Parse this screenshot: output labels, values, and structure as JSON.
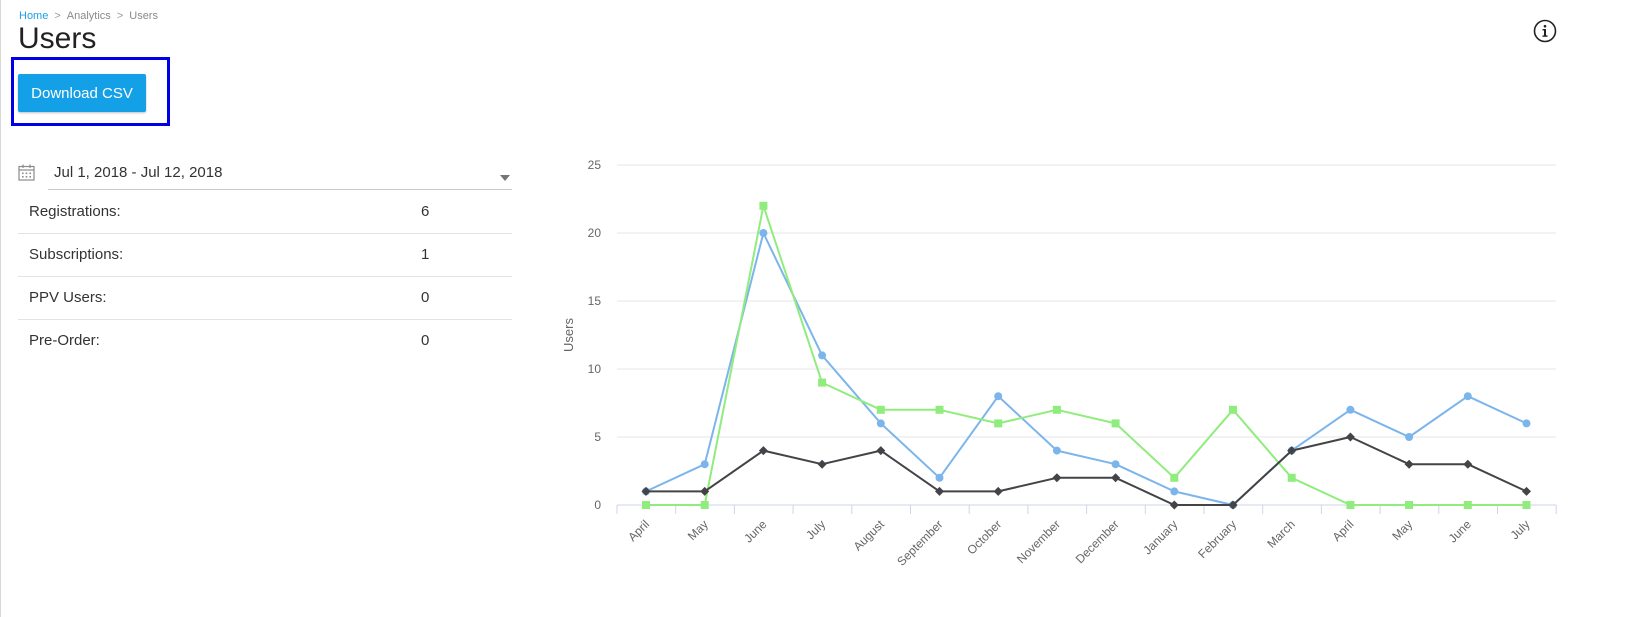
{
  "breadcrumb": {
    "home": "Home",
    "analytics": "Analytics",
    "current": "Users",
    "separator": ">"
  },
  "page": {
    "title": "Users"
  },
  "actions": {
    "download_label": "Download CSV"
  },
  "filter": {
    "date_range": "Jul 1, 2018 - Jul 12, 2018"
  },
  "stats": [
    {
      "label": "Registrations:",
      "value": "6"
    },
    {
      "label": "Subscriptions:",
      "value": "1"
    },
    {
      "label": "PPV Users:",
      "value": "0"
    },
    {
      "label": "Pre-Order:",
      "value": "0"
    }
  ],
  "icons": {
    "calendar": "calendar-icon",
    "info": "info-icon",
    "caret": "chevron-down-icon"
  },
  "colors": {
    "accent": "#14a0e6",
    "highlight": "#0000e6"
  },
  "chart_data": {
    "type": "line",
    "ylabel": "Users",
    "ylim": [
      0,
      25
    ],
    "yticks": [
      0,
      5,
      10,
      15,
      20,
      25
    ],
    "grid": true,
    "categories": [
      "April",
      "May",
      "June",
      "July",
      "August",
      "September",
      "October",
      "November",
      "December",
      "January",
      "February",
      "March",
      "April",
      "May",
      "June",
      "July"
    ],
    "series": [
      {
        "color": "#7cb5ec",
        "marker": "circle",
        "values": [
          1,
          3,
          20,
          11,
          6,
          2,
          8,
          4,
          3,
          1,
          0,
          4,
          7,
          5,
          8,
          6
        ]
      },
      {
        "color": "#90ed7d",
        "marker": "square",
        "values": [
          0,
          0,
          22,
          9,
          7,
          7,
          6,
          7,
          6,
          2,
          7,
          2,
          0,
          0,
          0,
          0
        ]
      },
      {
        "color": "#434348",
        "marker": "diamond",
        "values": [
          1,
          1,
          4,
          3,
          4,
          1,
          1,
          2,
          2,
          0,
          0,
          4,
          5,
          3,
          3,
          1
        ]
      }
    ]
  }
}
